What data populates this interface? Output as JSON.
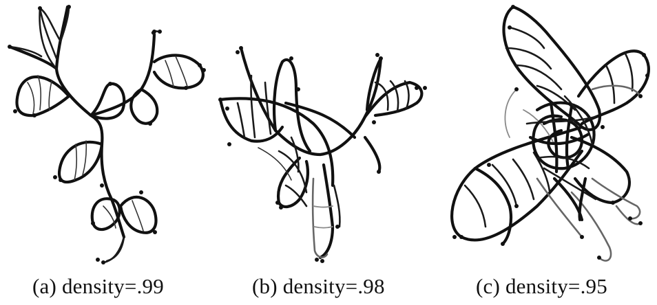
{
  "figure": {
    "panels": [
      {
        "id": "a",
        "caption": "(a)  density=.99"
      },
      {
        "id": "b",
        "caption": "(b)  density=.98"
      },
      {
        "id": "c",
        "caption": "(c)  density=.95"
      }
    ]
  },
  "colors": {
    "stroke": "#111111",
    "gray_stroke": "#666666",
    "background": "#ffffff"
  }
}
